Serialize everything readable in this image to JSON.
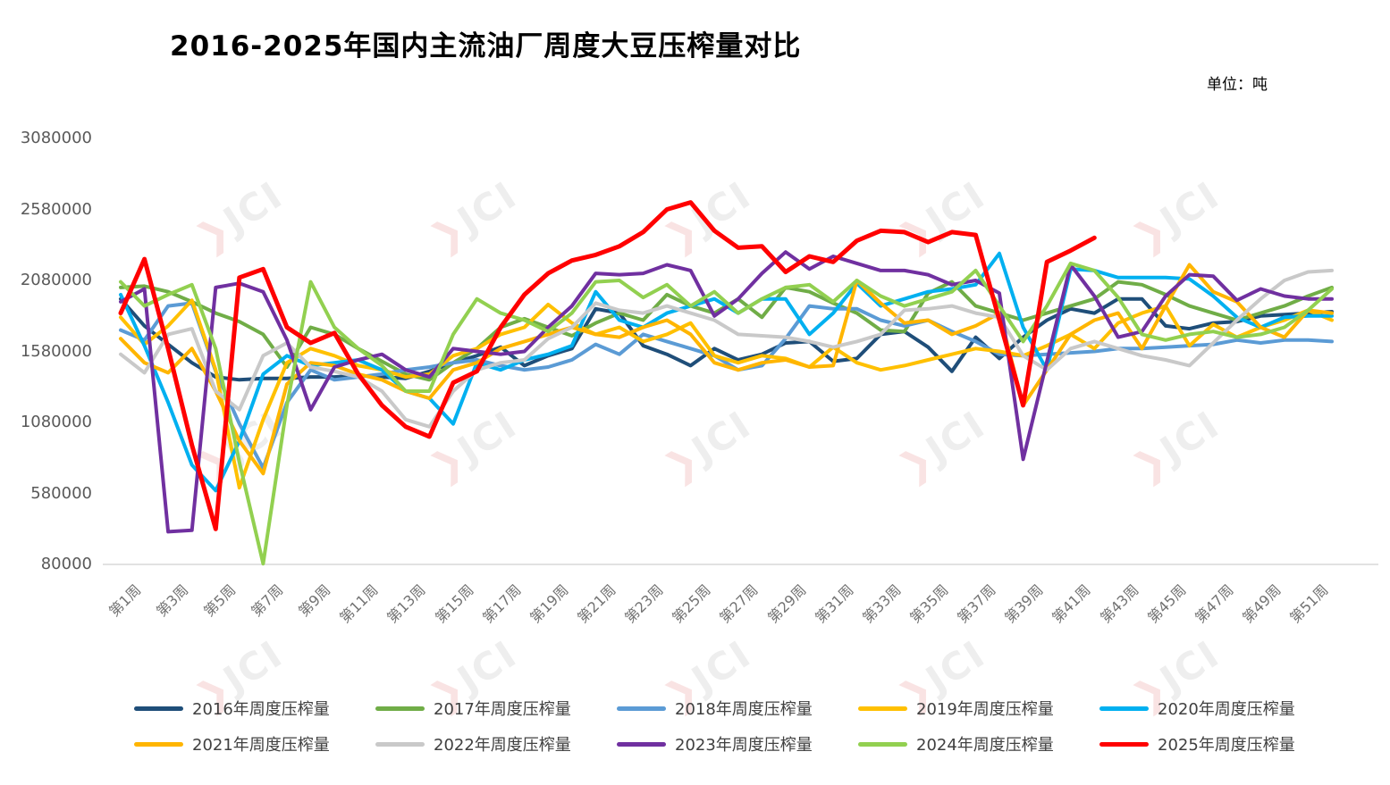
{
  "title": "2016-2025年国内主流油厂周度大豆压榨量对比",
  "unit_label": "单位：吨",
  "watermark": {
    "mark": "❯",
    "text": "JCI"
  },
  "chart_data": {
    "type": "line",
    "title": "2016-2025年国内主流油厂周度大豆压榨量对比",
    "unit": "吨",
    "x_weeks": 52,
    "x_tick_labels": [
      "第1周",
      "第3周",
      "第5周",
      "第7周",
      "第9周",
      "第11周",
      "第13周",
      "第15周",
      "第17周",
      "第19周",
      "第21周",
      "第23周",
      "第25周",
      "第27周",
      "第29周",
      "第31周",
      "第33周",
      "第35周",
      "第37周",
      "第39周",
      "第41周",
      "第43周",
      "第45周",
      "第47周",
      "第49周",
      "第51周"
    ],
    "y_ticks": [
      80000,
      580000,
      1080000,
      1580000,
      2080000,
      2580000,
      3080000
    ],
    "ylim": [
      80000,
      3080000
    ],
    "grid": "off",
    "legend_position": "bottom",
    "series": [
      {
        "name": "2016年周度压榨量",
        "color": "#1F4E79",
        "values": [
          1950000,
          1760000,
          1630000,
          1500000,
          1400000,
          1380000,
          1390000,
          1390000,
          1400000,
          1400000,
          1410000,
          1400000,
          1390000,
          1440000,
          1500000,
          1550000,
          1610000,
          1480000,
          1550000,
          1600000,
          1880000,
          1850000,
          1620000,
          1560000,
          1480000,
          1600000,
          1520000,
          1560000,
          1640000,
          1650000,
          1510000,
          1530000,
          1700000,
          1720000,
          1610000,
          1440000,
          1680000,
          1530000,
          1680000,
          1800000,
          1880000,
          1850000,
          1950000,
          1950000,
          1760000,
          1740000,
          1780000,
          1790000,
          1830000,
          1840000,
          1850000,
          1860000
        ]
      },
      {
        "name": "2017年周度压榨量",
        "color": "#70AD47",
        "values": [
          2030000,
          2040000,
          2000000,
          1930000,
          1850000,
          1790000,
          1700000,
          1470000,
          1750000,
          1700000,
          1600000,
          1510000,
          1420000,
          1380000,
          1500000,
          1600000,
          1750000,
          1810000,
          1750000,
          1690000,
          1780000,
          1850000,
          1800000,
          1980000,
          1900000,
          1850000,
          1950000,
          1820000,
          2030000,
          2000000,
          1920000,
          1850000,
          1730000,
          1720000,
          1990000,
          2070000,
          1900000,
          1850000,
          1800000,
          1850000,
          1900000,
          1950000,
          2070000,
          2050000,
          1980000,
          1900000,
          1850000,
          1800000,
          1850000,
          1900000,
          1970000,
          2030000
        ]
      },
      {
        "name": "2018年周度压榨量",
        "color": "#5B9BD5",
        "values": [
          1730000,
          1660000,
          1900000,
          1920000,
          1440000,
          1070000,
          760000,
          1220000,
          1450000,
          1380000,
          1400000,
          1420000,
          1450000,
          1470000,
          1500000,
          1520000,
          1480000,
          1450000,
          1470000,
          1520000,
          1630000,
          1560000,
          1700000,
          1650000,
          1600000,
          1550000,
          1450000,
          1480000,
          1670000,
          1900000,
          1880000,
          1880000,
          1800000,
          1760000,
          1800000,
          1720000,
          1650000,
          1560000,
          1550000,
          1560000,
          1570000,
          1580000,
          1600000,
          1600000,
          1610000,
          1620000,
          1630000,
          1660000,
          1640000,
          1660000,
          1660000,
          1650000
        ]
      },
      {
        "name": "2019年周度压榨量",
        "color": "#FFC000",
        "values": [
          1820000,
          1630000,
          1760000,
          1940000,
          1450000,
          620000,
          1100000,
          1500000,
          1600000,
          1550000,
          1480000,
          1450000,
          1400000,
          1420000,
          1550000,
          1600000,
          1700000,
          1750000,
          1910000,
          1780000,
          1700000,
          1750000,
          1650000,
          1700000,
          1780000,
          1550000,
          1500000,
          1550000,
          1530000,
          1470000,
          1610000,
          1500000,
          1450000,
          1480000,
          1520000,
          1560000,
          1600000,
          1580000,
          1550000,
          1620000,
          1700000,
          1600000,
          1780000,
          1850000,
          1900000,
          1620000,
          1770000,
          1680000,
          1750000,
          1800000,
          1870000,
          1800000
        ]
      },
      {
        "name": "2020年周度压榨量",
        "color": "#00B0F0",
        "values": [
          1980000,
          1620000,
          1220000,
          780000,
          600000,
          950000,
          1420000,
          1550000,
          1480000,
          1500000,
          1520000,
          1450000,
          1300000,
          1250000,
          1070000,
          1500000,
          1450000,
          1520000,
          1560000,
          1620000,
          2000000,
          1800000,
          1750000,
          1850000,
          1900000,
          1950000,
          1850000,
          1950000,
          1950000,
          1700000,
          1850000,
          2060000,
          1900000,
          1950000,
          2000000,
          2020000,
          2050000,
          2270000,
          1750000,
          1450000,
          2160000,
          2150000,
          2100000,
          2100000,
          2100000,
          2090000,
          1970000,
          1820000,
          1750000,
          1820000,
          1830000,
          1830000
        ]
      },
      {
        "name": "2021年周度压榨量",
        "color": "#FFB500",
        "values": [
          1670000,
          1500000,
          1430000,
          1600000,
          1300000,
          950000,
          720000,
          1350000,
          1500000,
          1480000,
          1420000,
          1380000,
          1300000,
          1250000,
          1450000,
          1500000,
          1600000,
          1650000,
          1700000,
          1750000,
          1700000,
          1680000,
          1750000,
          1800000,
          1700000,
          1500000,
          1450000,
          1500000,
          1520000,
          1470000,
          1480000,
          2080000,
          1920000,
          1780000,
          1800000,
          1700000,
          1760000,
          1850000,
          1200000,
          1450000,
          1700000,
          1800000,
          1850000,
          1600000,
          1900000,
          2190000,
          2000000,
          1930000,
          1750000,
          1680000,
          1870000,
          1850000
        ]
      },
      {
        "name": "2022年周度压榨量",
        "color": "#C9C9C9",
        "values": [
          1560000,
          1430000,
          1700000,
          1740000,
          1300000,
          1170000,
          1550000,
          1640000,
          1470000,
          1440000,
          1400000,
          1300000,
          1100000,
          1050000,
          1300000,
          1450000,
          1500000,
          1520000,
          1670000,
          1750000,
          1920000,
          1870000,
          1850000,
          1900000,
          1850000,
          1800000,
          1700000,
          1690000,
          1680000,
          1650000,
          1610000,
          1650000,
          1700000,
          1870000,
          1880000,
          1900000,
          1850000,
          1820000,
          1550000,
          1450000,
          1600000,
          1650000,
          1600000,
          1550000,
          1520000,
          1480000,
          1640000,
          1800000,
          1950000,
          2080000,
          2140000,
          2150000
        ]
      },
      {
        "name": "2023年周度压榨量",
        "color": "#7030A0",
        "values": [
          1930000,
          2020000,
          310000,
          320000,
          2030000,
          2060000,
          2000000,
          1660000,
          1170000,
          1470000,
          1520000,
          1560000,
          1450000,
          1400000,
          1600000,
          1580000,
          1560000,
          1580000,
          1750000,
          1900000,
          2130000,
          2120000,
          2130000,
          2190000,
          2150000,
          1830000,
          1950000,
          2130000,
          2280000,
          2160000,
          2250000,
          2200000,
          2150000,
          2150000,
          2120000,
          2050000,
          2080000,
          1990000,
          820000,
          1510000,
          2190000,
          1970000,
          1680000,
          1720000,
          1970000,
          2120000,
          2110000,
          1940000,
          2020000,
          1970000,
          1950000,
          1950000
        ]
      },
      {
        "name": "2024年周度压榨量",
        "color": "#92D050",
        "values": [
          2070000,
          1900000,
          1980000,
          2050000,
          1600000,
          800000,
          85000,
          1200000,
          2070000,
          1750000,
          1600000,
          1480000,
          1300000,
          1300000,
          1700000,
          1950000,
          1850000,
          1800000,
          1720000,
          1850000,
          2070000,
          2080000,
          1960000,
          2050000,
          1900000,
          2000000,
          1850000,
          1950000,
          2030000,
          2050000,
          1930000,
          2080000,
          1970000,
          1900000,
          1950000,
          2000000,
          2150000,
          1900000,
          1650000,
          1900000,
          2200000,
          2150000,
          1960000,
          1700000,
          1660000,
          1700000,
          1720000,
          1680000,
          1700000,
          1750000,
          1870000,
          2020000
        ]
      },
      {
        "name": "2025年周度压榨量",
        "color": "#FF0000",
        "values": [
          1850000,
          2230000,
          1600000,
          920000,
          330000,
          2100000,
          2160000,
          1750000,
          1640000,
          1710000,
          1420000,
          1200000,
          1050000,
          980000,
          1360000,
          1440000,
          1750000,
          1980000,
          2130000,
          2220000,
          2260000,
          2320000,
          2420000,
          2580000,
          2630000,
          2430000,
          2310000,
          2320000,
          2140000,
          2250000,
          2210000,
          2360000,
          2430000,
          2420000,
          2350000,
          2420000,
          2400000,
          1800000,
          1200000,
          2210000,
          2290000,
          2380000
        ]
      }
    ]
  }
}
